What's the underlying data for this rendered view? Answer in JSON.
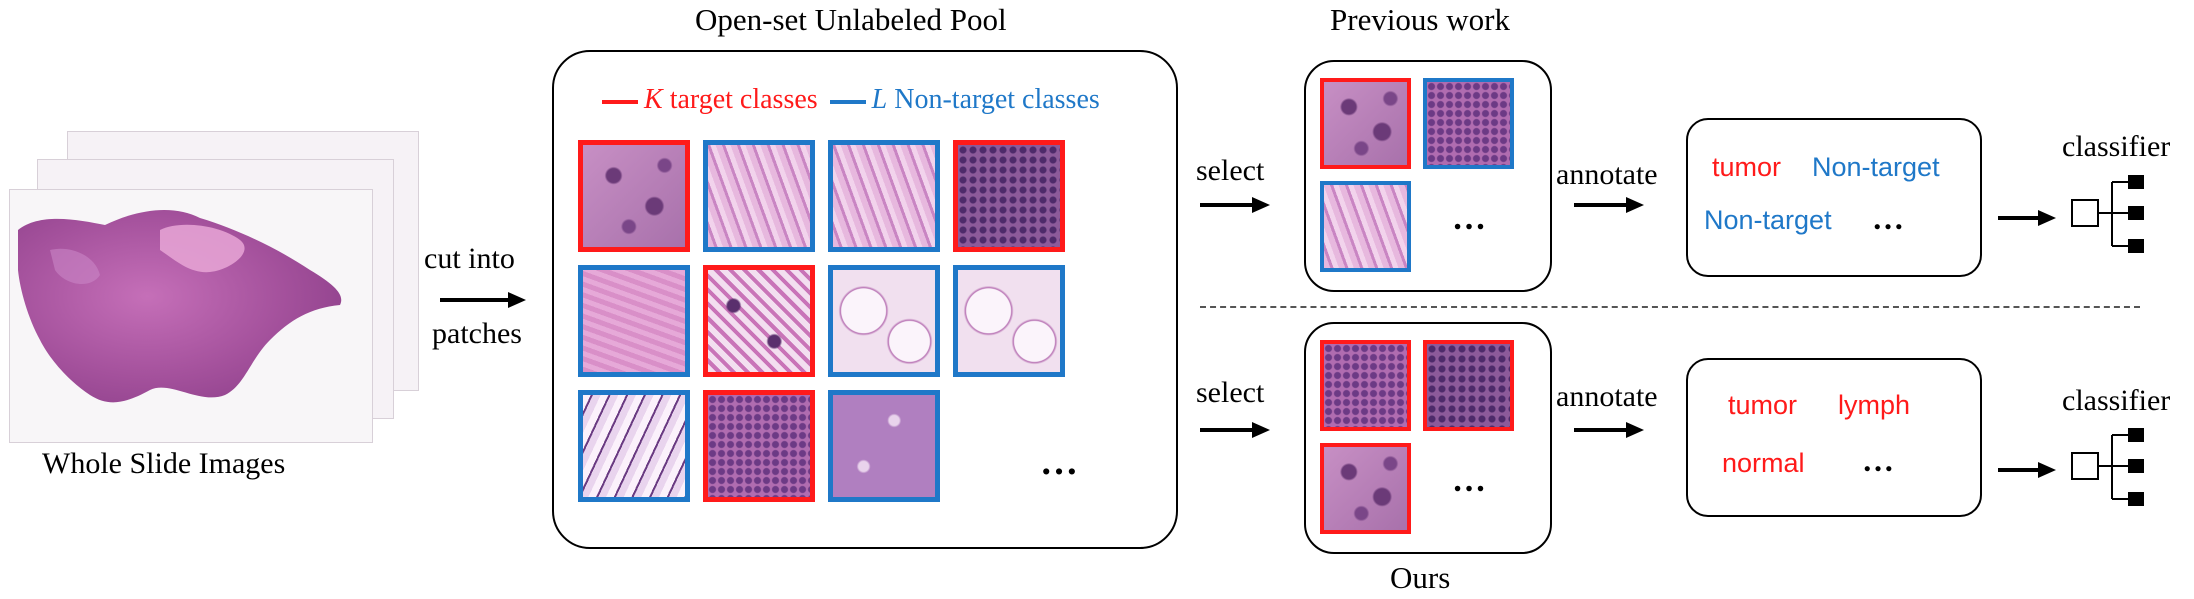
{
  "colors": {
    "target": "#ff1a1a",
    "nontarget": "#1f78c8",
    "tissue": "#b35aa5"
  },
  "wsi": {
    "caption": "Whole Slide Images"
  },
  "step1": {
    "line1": "cut into",
    "line2": "patches"
  },
  "pool": {
    "title": "Open-set Unlabeled Pool",
    "legend_k_var": "K",
    "legend_k_text": " target classes",
    "legend_l_var": "L",
    "legend_l_text": " Non-target classes",
    "ellipsis": "…",
    "patches": [
      {
        "cls": "target",
        "tex": "nuclei"
      },
      {
        "cls": "nontarget",
        "tex": "fiber"
      },
      {
        "cls": "nontarget",
        "tex": "fiber"
      },
      {
        "cls": "target",
        "tex": "lymph"
      },
      {
        "cls": "nontarget",
        "tex": "smooth"
      },
      {
        "cls": "target",
        "tex": "mixed"
      },
      {
        "cls": "nontarget",
        "tex": "fat"
      },
      {
        "cls": "nontarget",
        "tex": "fat"
      },
      {
        "cls": "nontarget",
        "tex": "mucus"
      },
      {
        "cls": "target",
        "tex": "dense"
      },
      {
        "cls": "nontarget",
        "tex": "pale"
      }
    ]
  },
  "prev": {
    "title": "Previous work",
    "select": "select",
    "annotate": "annotate",
    "ellipsis": "…",
    "patches": [
      {
        "cls": "target",
        "tex": "nuclei"
      },
      {
        "cls": "nontarget",
        "tex": "dense"
      },
      {
        "cls": "nontarget",
        "tex": "fiber"
      }
    ],
    "labels": {
      "a": "tumor",
      "b": "Non-target",
      "c": "Non-target",
      "d": "…"
    },
    "classifier": "classifier"
  },
  "ours": {
    "title": "Ours",
    "select": "select",
    "annotate": "annotate",
    "ellipsis": "…",
    "patches": [
      {
        "cls": "target",
        "tex": "dense"
      },
      {
        "cls": "target",
        "tex": "lymph"
      },
      {
        "cls": "target",
        "tex": "nuclei"
      }
    ],
    "labels": {
      "a": "tumor",
      "b": "lymph",
      "c": "normal",
      "d": "…"
    },
    "classifier": "classifier"
  }
}
